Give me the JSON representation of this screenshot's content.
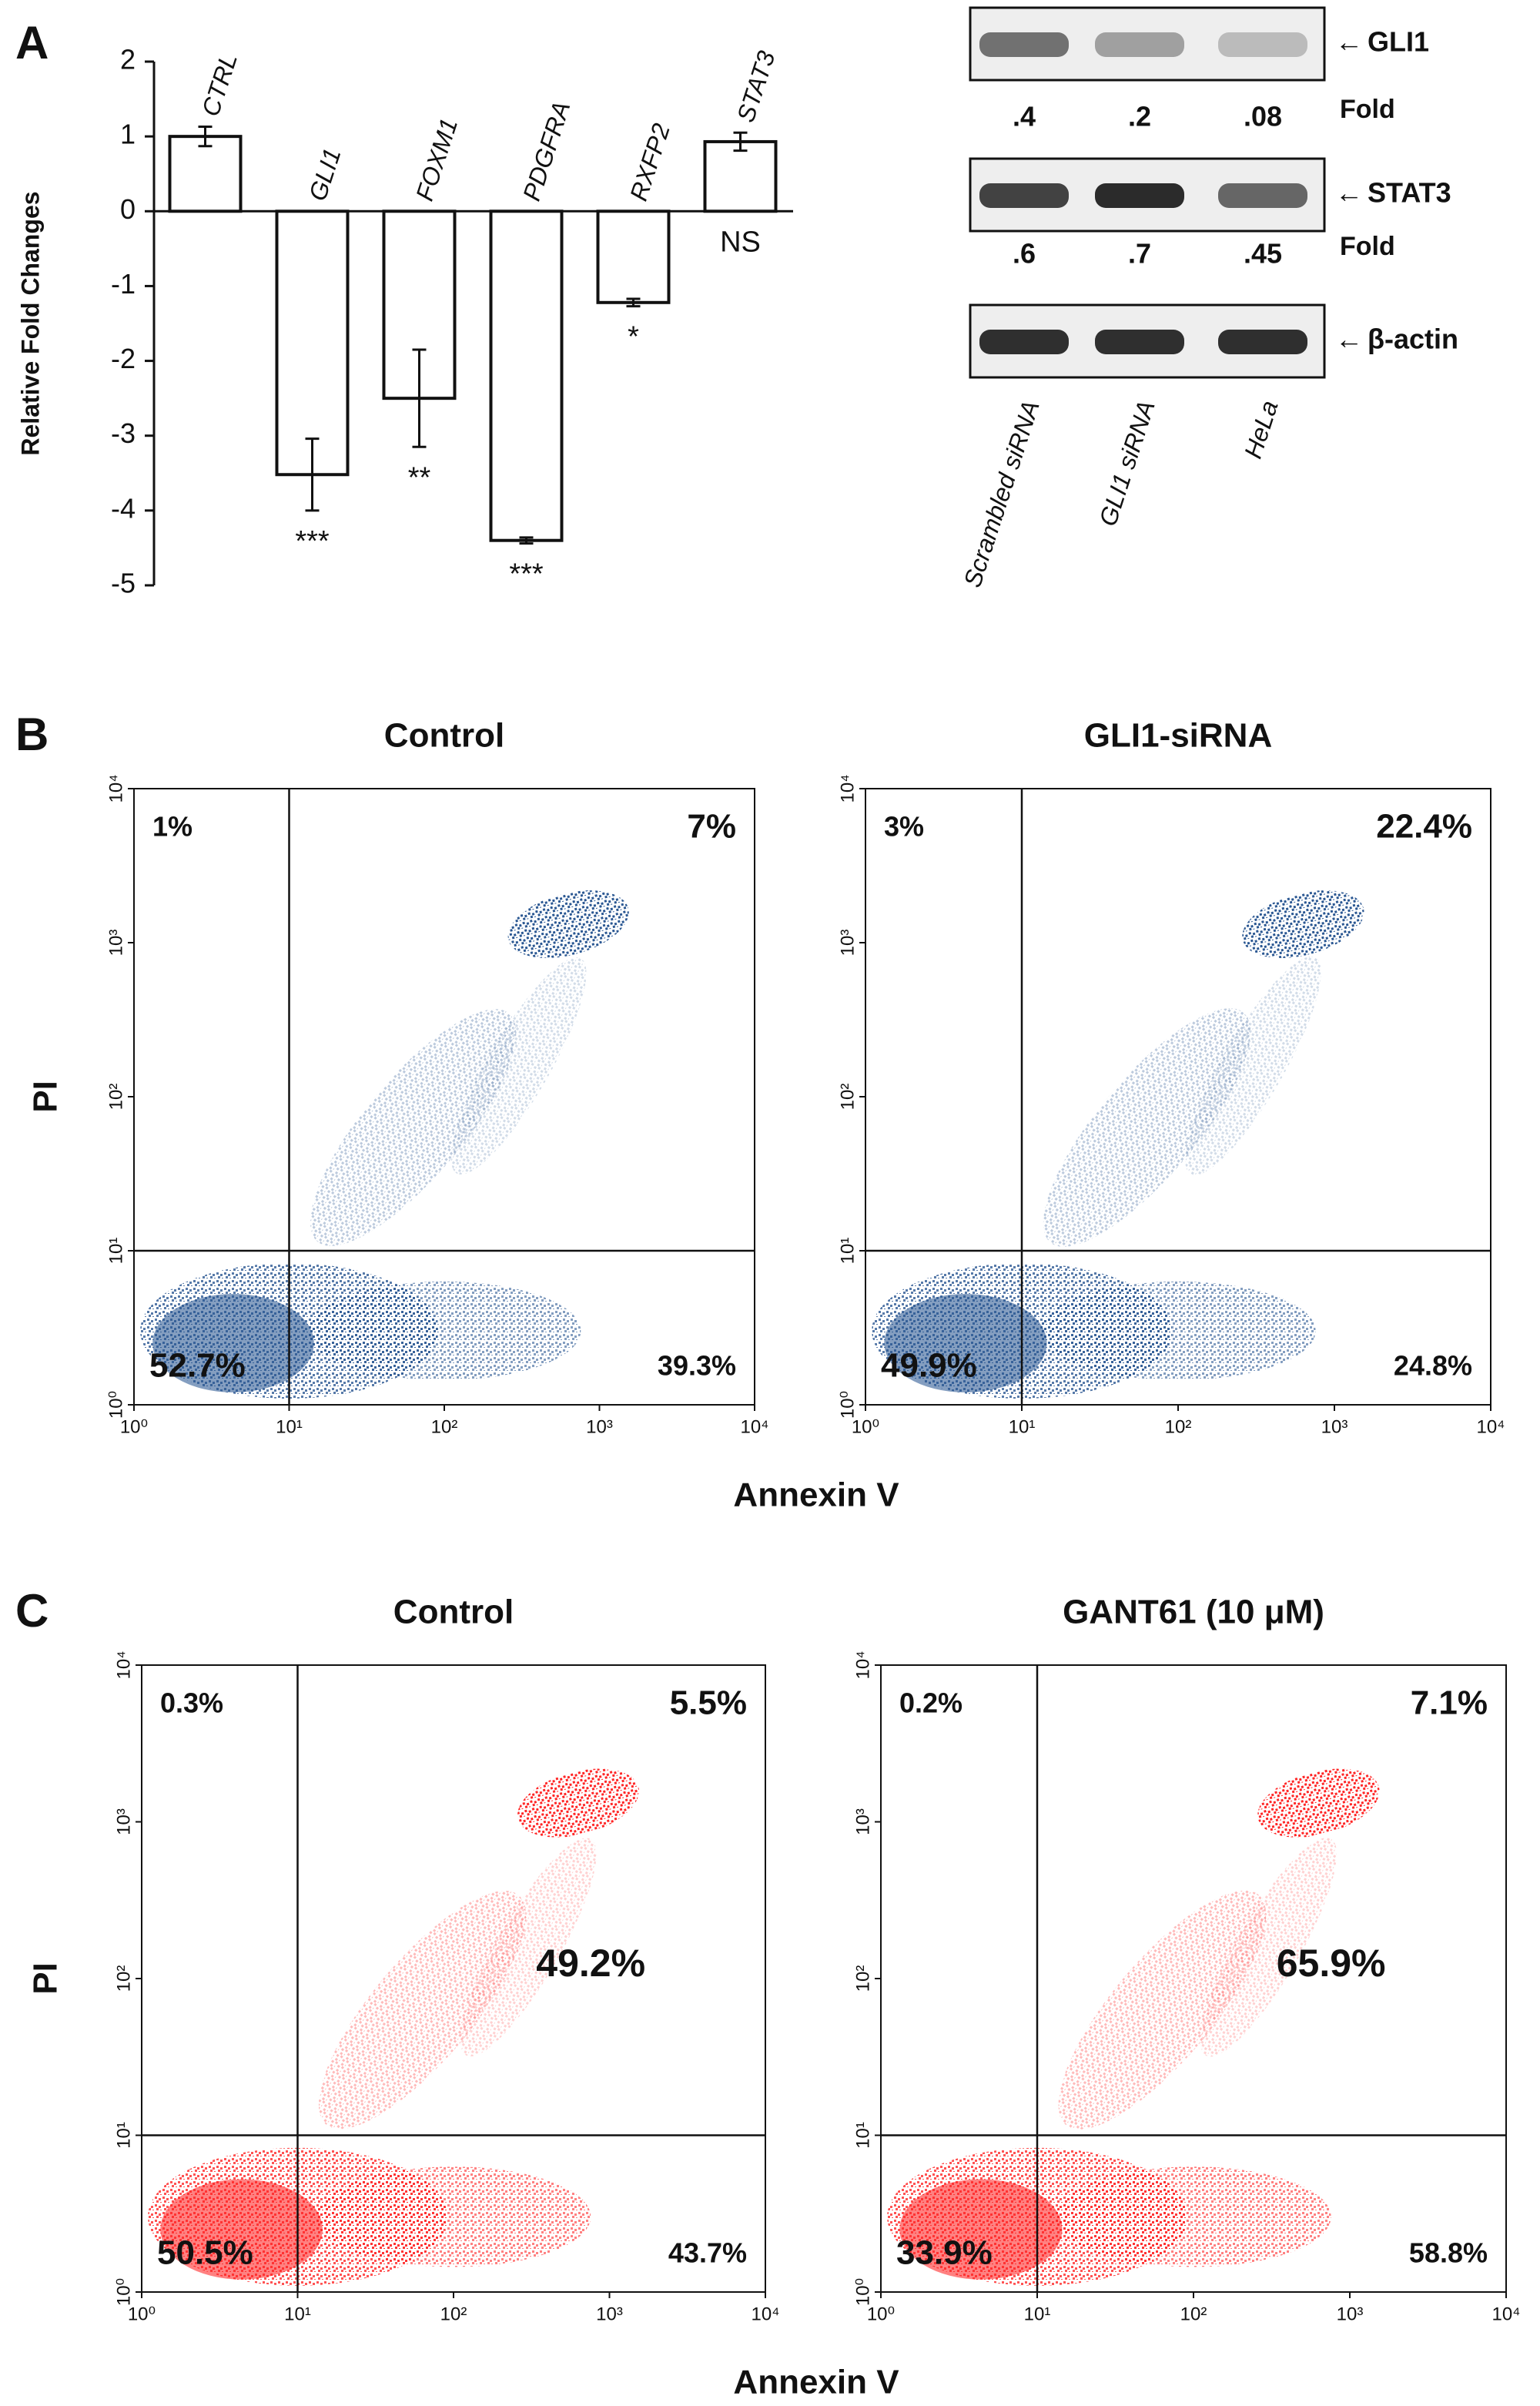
{
  "chart_data": [
    {
      "type": "bar",
      "panel": "A",
      "ylabel": "Relative Fold Changes",
      "categories": [
        "CTRL",
        "GLI1",
        "FOXM1",
        "PDGFRA",
        "RXFP2",
        "STAT3"
      ],
      "values": [
        1,
        -3.52,
        -2.5,
        -4.4,
        -1.22,
        0.93
      ],
      "errors": [
        0.13,
        0.48,
        0.65,
        0.04,
        0.05,
        0.12
      ],
      "significance": [
        null,
        "***",
        "**",
        "***",
        "*",
        "NS"
      ],
      "color": "#ffffff",
      "ylim": [
        -5,
        2
      ],
      "yticks": [
        -5,
        -4,
        -3,
        -2,
        -1,
        0,
        1,
        2
      ]
    },
    {
      "type": "blot",
      "lanes": [
        "Scrambled siRNA",
        "GLI1 siRNA",
        "HeLa"
      ],
      "rows": [
        {
          "name": "GLI1",
          "fold_label": "Fold",
          "fold": [
            0.4,
            0.2,
            0.08
          ],
          "value_labels": [
            ".4",
            ".2",
            ".08"
          ]
        },
        {
          "name": "STAT3",
          "fold_label": "Fold",
          "fold": [
            0.6,
            0.7,
            0.45
          ],
          "value_labels": [
            ".6",
            ".7",
            ".45"
          ]
        },
        {
          "name": "β-actin"
        }
      ]
    },
    {
      "type": "scatter",
      "panel": "B",
      "title": "Control",
      "xlabel": "Annexin V",
      "ylabel": "PI",
      "xscale": "log",
      "yscale": "log",
      "xlim": [
        1,
        10000
      ],
      "ylim": [
        1,
        10000
      ],
      "color": "#1f4e8c",
      "gates": [
        10,
        10
      ],
      "xticks": [
        {
          "value": 1,
          "label": "10⁰"
        },
        {
          "value": 10,
          "label": "10¹"
        },
        {
          "value": 100,
          "label": "10²"
        },
        {
          "value": 1000,
          "label": "10³"
        },
        {
          "value": 10000,
          "label": "10⁴"
        }
      ],
      "yticks": [
        {
          "value": 1,
          "label": "10⁰"
        },
        {
          "value": 10,
          "label": "10¹"
        },
        {
          "value": 100,
          "label": "10²"
        },
        {
          "value": 1000,
          "label": "10³"
        },
        {
          "value": 10000,
          "label": "10⁴"
        }
      ],
      "quadrant_values": [
        1,
        7,
        52.7,
        39.3
      ],
      "quadrant_labels": [
        "1%",
        "7%",
        "52.7%",
        "39.3%"
      ],
      "quadrant_colors": [
        "#111111",
        "#2a2ae0",
        "#e6e62e",
        "#111111"
      ]
    },
    {
      "type": "scatter",
      "title": "GLI1-siRNA",
      "xscale": "log",
      "yscale": "log",
      "xlim": [
        1,
        10000
      ],
      "ylim": [
        1,
        10000
      ],
      "color": "#1f4e8c",
      "gates": [
        10,
        10
      ],
      "xticks": [
        {
          "value": 1,
          "label": "10⁰"
        },
        {
          "value": 10,
          "label": "10¹"
        },
        {
          "value": 100,
          "label": "10²"
        },
        {
          "value": 1000,
          "label": "10³"
        },
        {
          "value": 10000,
          "label": "10⁴"
        }
      ],
      "yticks": [
        {
          "value": 1,
          "label": "10⁰"
        },
        {
          "value": 10,
          "label": "10¹"
        },
        {
          "value": 100,
          "label": "10²"
        },
        {
          "value": 1000,
          "label": "10³"
        },
        {
          "value": 10000,
          "label": "10⁴"
        }
      ],
      "quadrant_values": [
        3,
        22.4,
        49.9,
        24.8
      ],
      "quadrant_labels": [
        "3%",
        "22.4%",
        "49.9%",
        "24.8%"
      ],
      "quadrant_colors": [
        "#111111",
        "#2a2ae0",
        "#e6e62e",
        "#111111"
      ]
    },
    {
      "type": "scatter",
      "panel": "C",
      "title": "Control",
      "xlabel": "Annexin V",
      "ylabel": "PI",
      "xscale": "log",
      "yscale": "log",
      "xlim": [
        1,
        10000
      ],
      "ylim": [
        1,
        10000
      ],
      "color": "#ff1a1a",
      "gates": [
        10,
        10
      ],
      "xticks": [
        {
          "value": 1,
          "label": "10⁰"
        },
        {
          "value": 10,
          "label": "10¹"
        },
        {
          "value": 100,
          "label": "10²"
        },
        {
          "value": 1000,
          "label": "10³"
        },
        {
          "value": 10000,
          "label": "10⁴"
        }
      ],
      "yticks": [
        {
          "value": 1,
          "label": "10⁰"
        },
        {
          "value": 10,
          "label": "10¹"
        },
        {
          "value": 100,
          "label": "10²"
        },
        {
          "value": 1000,
          "label": "10³"
        },
        {
          "value": 10000,
          "label": "10⁴"
        }
      ],
      "quadrant_values": [
        0.3,
        5.5,
        50.5,
        43.7
      ],
      "quadrant_labels": [
        "0.3%",
        "5.5%",
        "50.5%",
        "43.7%"
      ],
      "quadrant_colors": [
        "#111111",
        "#111111",
        "#2a2ae0",
        "#111111"
      ],
      "total_apoptotic": 49.2,
      "total_apoptotic_label": "49.2%",
      "total_apoptotic_color": "#ff2020"
    },
    {
      "type": "scatter",
      "title": "GANT61 (10 μM)",
      "xscale": "log",
      "yscale": "log",
      "xlim": [
        1,
        10000
      ],
      "ylim": [
        1,
        10000
      ],
      "color": "#ff1a1a",
      "gates": [
        10,
        10
      ],
      "xticks": [
        {
          "value": 1,
          "label": "10⁰"
        },
        {
          "value": 10,
          "label": "10¹"
        },
        {
          "value": 100,
          "label": "10²"
        },
        {
          "value": 1000,
          "label": "10³"
        },
        {
          "value": 10000,
          "label": "10⁴"
        }
      ],
      "yticks": [
        {
          "value": 1,
          "label": "10⁰"
        },
        {
          "value": 10,
          "label": "10¹"
        },
        {
          "value": 100,
          "label": "10²"
        },
        {
          "value": 1000,
          "label": "10³"
        },
        {
          "value": 10000,
          "label": "10⁴"
        }
      ],
      "quadrant_values": [
        0.2,
        7.1,
        33.9,
        58.8
      ],
      "quadrant_labels": [
        "0.2%",
        "7.1%",
        "33.9%",
        "58.8%"
      ],
      "quadrant_colors": [
        "#111111",
        "#111111",
        "#2a2ae0",
        "#111111"
      ],
      "total_apoptotic": 65.9,
      "total_apoptotic_label": "65.9%",
      "total_apoptotic_color": "#ff2020"
    }
  ]
}
